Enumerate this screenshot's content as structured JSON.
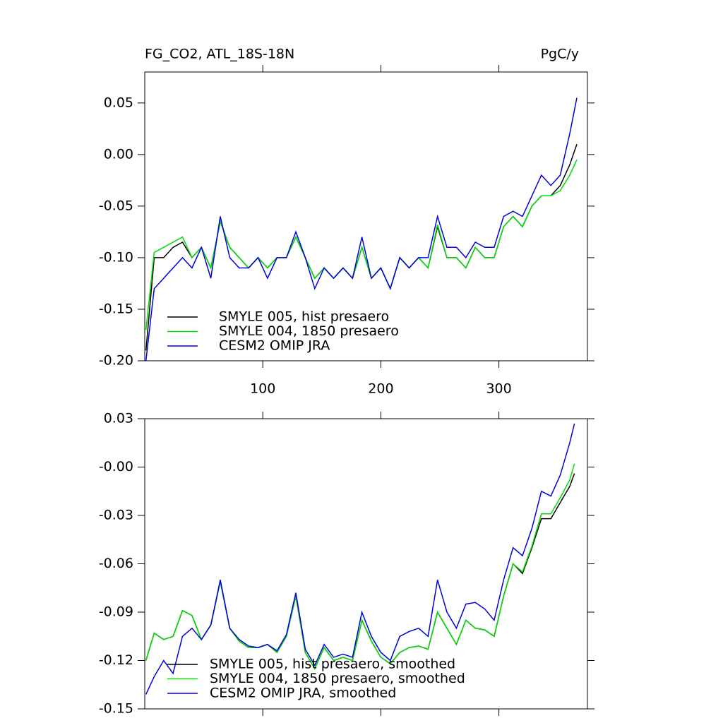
{
  "chart_data": [
    {
      "type": "line",
      "title": "FG_CO2, ATL_18S-18N",
      "units": "PgC/y",
      "x": [
        1,
        8,
        16,
        24,
        32,
        40,
        48,
        56,
        64,
        72,
        80,
        88,
        96,
        104,
        112,
        120,
        128,
        136,
        144,
        152,
        160,
        168,
        176,
        184,
        192,
        200,
        208,
        216,
        224,
        232,
        240,
        248,
        256,
        264,
        272,
        280,
        288,
        296,
        304,
        312,
        320,
        328,
        336,
        344,
        352,
        360,
        366
      ],
      "series": [
        {
          "name": "SMYLE 005, hist presaero",
          "color": "#000000",
          "values": [
            -0.19,
            -0.1,
            -0.1,
            -0.09,
            -0.085,
            -0.1,
            -0.09,
            -0.11,
            -0.065,
            -0.09,
            -0.1,
            -0.11,
            -0.1,
            -0.11,
            -0.1,
            -0.1,
            -0.08,
            -0.1,
            -0.12,
            -0.11,
            -0.12,
            -0.11,
            -0.12,
            -0.09,
            -0.12,
            -0.11,
            -0.13,
            -0.1,
            -0.11,
            -0.1,
            -0.11,
            -0.07,
            -0.1,
            -0.1,
            -0.11,
            -0.09,
            -0.1,
            -0.1,
            -0.07,
            -0.06,
            -0.07,
            -0.05,
            -0.04,
            -0.04,
            -0.03,
            -0.01,
            0.01
          ]
        },
        {
          "name": "SMYLE 004, 1850 presaero",
          "color": "#00dd00",
          "values": [
            -0.17,
            -0.095,
            -0.09,
            -0.085,
            -0.08,
            -0.1,
            -0.09,
            -0.11,
            -0.065,
            -0.09,
            -0.1,
            -0.11,
            -0.1,
            -0.11,
            -0.1,
            -0.1,
            -0.08,
            -0.1,
            -0.12,
            -0.11,
            -0.12,
            -0.11,
            -0.12,
            -0.09,
            -0.12,
            -0.11,
            -0.13,
            -0.1,
            -0.11,
            -0.1,
            -0.11,
            -0.068,
            -0.1,
            -0.1,
            -0.11,
            -0.09,
            -0.1,
            -0.1,
            -0.07,
            -0.06,
            -0.07,
            -0.05,
            -0.04,
            -0.04,
            -0.035,
            -0.02,
            -0.005
          ]
        },
        {
          "name": "CESM2 OMIP JRA",
          "color": "#0000dd",
          "values": [
            -0.2,
            -0.13,
            -0.12,
            -0.11,
            -0.1,
            -0.11,
            -0.09,
            -0.12,
            -0.06,
            -0.1,
            -0.11,
            -0.11,
            -0.1,
            -0.12,
            -0.1,
            -0.1,
            -0.075,
            -0.1,
            -0.13,
            -0.11,
            -0.12,
            -0.11,
            -0.12,
            -0.08,
            -0.12,
            -0.11,
            -0.13,
            -0.1,
            -0.11,
            -0.1,
            -0.1,
            -0.06,
            -0.09,
            -0.09,
            -0.1,
            -0.085,
            -0.09,
            -0.09,
            -0.06,
            -0.055,
            -0.06,
            -0.04,
            -0.02,
            -0.03,
            -0.02,
            0.02,
            0.055
          ]
        }
      ],
      "xlim": [
        0,
        375
      ],
      "ylim": [
        -0.2,
        0.08
      ],
      "xticks": [
        100,
        200,
        300
      ],
      "yticks": [
        {
          "value": -0.2,
          "label": "-0.20"
        },
        -0.15,
        {
          "value": -0.1,
          "label": "-0.10"
        },
        -0.05,
        {
          "value": 0,
          "label": "0.00"
        },
        0.05
      ],
      "legend": "lower left"
    },
    {
      "type": "line",
      "x": [
        1,
        8,
        16,
        24,
        32,
        40,
        48,
        56,
        64,
        72,
        80,
        88,
        96,
        104,
        112,
        120,
        128,
        136,
        144,
        152,
        160,
        168,
        176,
        184,
        192,
        200,
        208,
        216,
        224,
        232,
        240,
        248,
        256,
        264,
        272,
        280,
        288,
        296,
        304,
        312,
        320,
        328,
        336,
        344,
        352,
        360,
        364
      ],
      "series": [
        {
          "name": "SMYLE 005, hist presaero, smoothed",
          "color": "#000000",
          "values": [
            -0.12,
            -0.103,
            -0.107,
            -0.105,
            -0.089,
            -0.092,
            -0.107,
            -0.098,
            -0.071,
            -0.1,
            -0.108,
            -0.112,
            -0.112,
            -0.11,
            -0.115,
            -0.105,
            -0.08,
            -0.115,
            -0.125,
            -0.112,
            -0.12,
            -0.118,
            -0.12,
            -0.095,
            -0.108,
            -0.118,
            -0.122,
            -0.115,
            -0.112,
            -0.111,
            -0.113,
            -0.09,
            -0.1,
            -0.11,
            -0.095,
            -0.1,
            -0.101,
            -0.105,
            -0.08,
            -0.06,
            -0.066,
            -0.05,
            -0.032,
            -0.032,
            -0.022,
            -0.012,
            -0.004
          ]
        },
        {
          "name": "SMYLE 004, 1850 presaero, smoothed",
          "color": "#00dd00",
          "values": [
            -0.12,
            -0.103,
            -0.107,
            -0.105,
            -0.089,
            -0.092,
            -0.107,
            -0.098,
            -0.071,
            -0.1,
            -0.108,
            -0.112,
            -0.112,
            -0.11,
            -0.115,
            -0.105,
            -0.08,
            -0.115,
            -0.125,
            -0.112,
            -0.12,
            -0.118,
            -0.12,
            -0.095,
            -0.108,
            -0.118,
            -0.122,
            -0.115,
            -0.112,
            -0.111,
            -0.113,
            -0.09,
            -0.1,
            -0.11,
            -0.095,
            -0.1,
            -0.101,
            -0.105,
            -0.08,
            -0.06,
            -0.065,
            -0.049,
            -0.029,
            -0.029,
            -0.019,
            -0.008,
            0.002
          ]
        },
        {
          "name": "CESM2 OMIP JRA, smoothed",
          "color": "#0000dd",
          "values": [
            -0.141,
            -0.13,
            -0.12,
            -0.128,
            -0.105,
            -0.1,
            -0.107,
            -0.098,
            -0.07,
            -0.1,
            -0.107,
            -0.111,
            -0.112,
            -0.11,
            -0.114,
            -0.104,
            -0.078,
            -0.113,
            -0.123,
            -0.11,
            -0.118,
            -0.116,
            -0.118,
            -0.09,
            -0.105,
            -0.115,
            -0.12,
            -0.105,
            -0.102,
            -0.1,
            -0.105,
            -0.07,
            -0.09,
            -0.1,
            -0.085,
            -0.084,
            -0.088,
            -0.095,
            -0.07,
            -0.05,
            -0.055,
            -0.038,
            -0.015,
            -0.018,
            -0.005,
            0.015,
            0.027
          ]
        }
      ],
      "xlim": [
        0,
        375
      ],
      "ylim": [
        -0.15,
        0.03
      ],
      "xticks": [
        100,
        200,
        300
      ],
      "xtick_labels": false,
      "yticks": [
        -0.15,
        -0.12,
        -0.09,
        -0.06,
        -0.03,
        {
          "value": 0,
          "label": "-0.00"
        },
        0.03
      ],
      "legend": "lower left"
    }
  ]
}
